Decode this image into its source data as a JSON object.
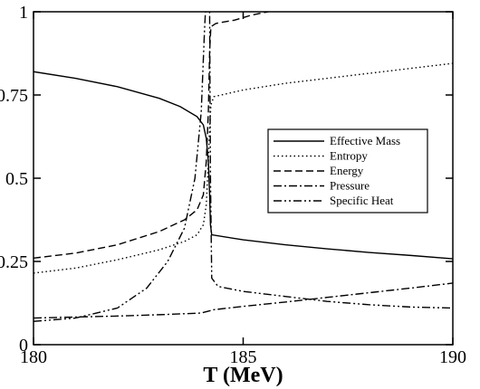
{
  "chart_data": {
    "type": "line",
    "xlabel": "T (MeV)",
    "ylabel": "",
    "xlim": [
      180,
      190
    ],
    "ylim": [
      0,
      1
    ],
    "xticks": [
      180,
      185,
      190
    ],
    "yticks": [
      0,
      0.25,
      0.5,
      0.75,
      1
    ],
    "xtick_labels": [
      "180",
      "185",
      "190"
    ],
    "ytick_labels": [
      "0",
      "0.25",
      "0.5",
      "0.75",
      "1"
    ],
    "grid": false,
    "legend_position": "right-center",
    "series": [
      {
        "name": "Effective Mass",
        "dash": "solid",
        "points": [
          [
            180,
            0.82
          ],
          [
            181,
            0.8
          ],
          [
            182,
            0.775
          ],
          [
            183,
            0.74
          ],
          [
            183.5,
            0.715
          ],
          [
            183.9,
            0.685
          ],
          [
            184.05,
            0.66
          ],
          [
            184.12,
            0.62
          ],
          [
            184.17,
            0.55
          ],
          [
            184.2,
            0.45
          ],
          [
            184.22,
            0.36
          ],
          [
            184.25,
            0.33
          ],
          [
            185,
            0.315
          ],
          [
            186,
            0.3
          ],
          [
            187,
            0.288
          ],
          [
            188,
            0.277
          ],
          [
            189,
            0.268
          ],
          [
            190,
            0.258
          ]
        ]
      },
      {
        "name": "Entropy",
        "dash": "dotted",
        "points": [
          [
            180,
            0.215
          ],
          [
            181,
            0.23
          ],
          [
            182,
            0.255
          ],
          [
            183,
            0.285
          ],
          [
            183.6,
            0.31
          ],
          [
            183.9,
            0.33
          ],
          [
            184.05,
            0.36
          ],
          [
            184.12,
            0.42
          ],
          [
            184.17,
            0.55
          ],
          [
            184.2,
            0.65
          ],
          [
            184.23,
            0.72
          ],
          [
            184.3,
            0.745
          ],
          [
            185,
            0.765
          ],
          [
            186,
            0.785
          ],
          [
            187,
            0.8
          ],
          [
            188,
            0.815
          ],
          [
            189,
            0.83
          ],
          [
            190,
            0.845
          ]
        ]
      },
      {
        "name": "Energy",
        "dash": "dashed",
        "points": [
          [
            180,
            0.26
          ],
          [
            181,
            0.275
          ],
          [
            182,
            0.3
          ],
          [
            183,
            0.34
          ],
          [
            183.6,
            0.375
          ],
          [
            183.9,
            0.405
          ],
          [
            184.05,
            0.45
          ],
          [
            184.12,
            0.55
          ],
          [
            184.17,
            0.7
          ],
          [
            184.2,
            0.88
          ],
          [
            184.23,
            0.955
          ],
          [
            184.35,
            0.965
          ],
          [
            184.8,
            0.975
          ],
          [
            185.2,
            0.99
          ],
          [
            185.6,
            1.0
          ]
        ]
      },
      {
        "name": "Pressure",
        "dash": "dash-dot",
        "points": [
          [
            180,
            0.08
          ],
          [
            181,
            0.083
          ],
          [
            182,
            0.086
          ],
          [
            183,
            0.09
          ],
          [
            184,
            0.095
          ],
          [
            184.3,
            0.105
          ],
          [
            185,
            0.115
          ],
          [
            186,
            0.128
          ],
          [
            187,
            0.142
          ],
          [
            188,
            0.156
          ],
          [
            189,
            0.17
          ],
          [
            190,
            0.185
          ]
        ]
      },
      {
        "name": "Specific Heat",
        "dash": "dash-dot-dot",
        "points": [
          [
            180,
            0.07
          ],
          [
            181,
            0.08
          ],
          [
            182,
            0.11
          ],
          [
            182.7,
            0.17
          ],
          [
            183.2,
            0.25
          ],
          [
            183.6,
            0.35
          ],
          [
            183.85,
            0.5
          ],
          [
            184,
            0.7
          ],
          [
            184.08,
            0.95
          ],
          [
            184.1,
            1.0
          ],
          [
            184.2,
            1.0
          ],
          [
            184.22,
            0.5
          ],
          [
            184.25,
            0.2
          ],
          [
            184.4,
            0.175
          ],
          [
            185,
            0.16
          ],
          [
            186,
            0.145
          ],
          [
            187,
            0.13
          ],
          [
            188,
            0.12
          ],
          [
            189,
            0.113
          ],
          [
            190,
            0.11
          ]
        ]
      }
    ]
  }
}
